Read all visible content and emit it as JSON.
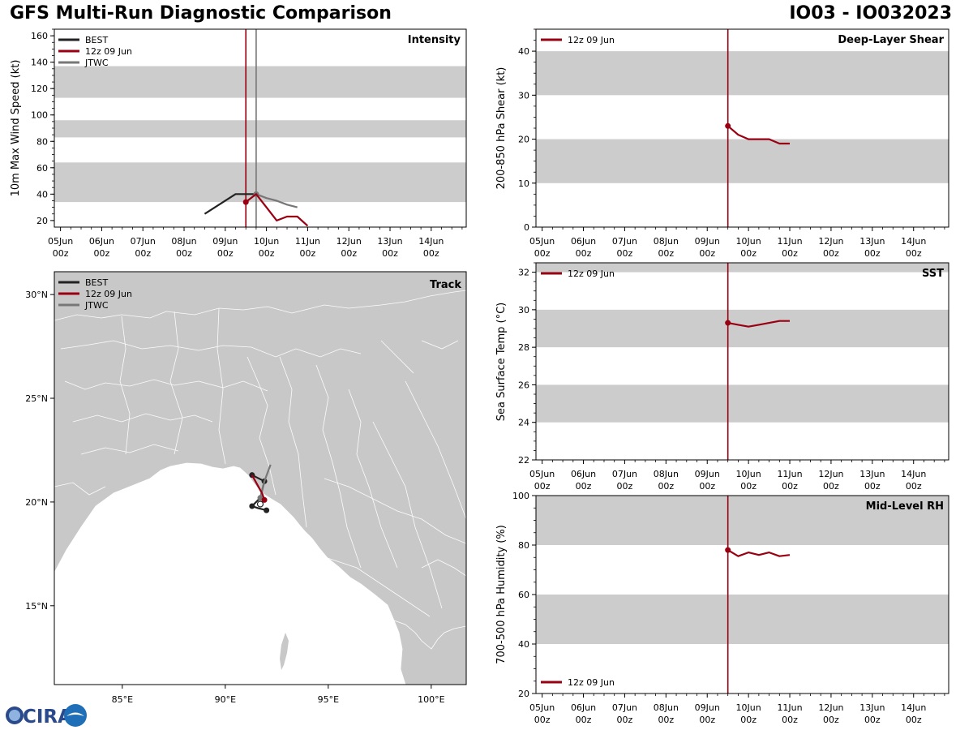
{
  "header": {
    "title": "GFS Multi-Run Diagnostic Comparison",
    "storm_id": "IO03 - IO032023"
  },
  "logo": {
    "text": "CIRA",
    "icon": "cira-logo-icon"
  },
  "colors": {
    "best": "#222222",
    "run": "#990011",
    "jtwc": "#777777",
    "band": "#cccccc",
    "land": "#c8c8c8",
    "border": "#ffffff"
  },
  "time_axis": {
    "ticks": [
      {
        "t": 0,
        "day": "05Jun",
        "hr": "00z"
      },
      {
        "t": 1,
        "day": "06Jun",
        "hr": "00z"
      },
      {
        "t": 2,
        "day": "07Jun",
        "hr": "00z"
      },
      {
        "t": 3,
        "day": "08Jun",
        "hr": "00z"
      },
      {
        "t": 4,
        "day": "09Jun",
        "hr": "00z"
      },
      {
        "t": 5,
        "day": "10Jun",
        "hr": "00z"
      },
      {
        "t": 6,
        "day": "11Jun",
        "hr": "00z"
      },
      {
        "t": 7,
        "day": "12Jun",
        "hr": "00z"
      },
      {
        "t": 8,
        "day": "13Jun",
        "hr": "00z"
      },
      {
        "t": 9,
        "day": "14Jun",
        "hr": "00z"
      }
    ],
    "range_days": [
      -0.15,
      9.85
    ],
    "note": "t = days since 05Jun 00z"
  },
  "chart_data": [
    {
      "id": "intensity",
      "type": "line",
      "title": "Intensity",
      "ylabel": "10m Max Wind Speed (kt)",
      "ylim": [
        15,
        165
      ],
      "yticks": [
        20,
        40,
        60,
        80,
        100,
        120,
        140,
        160
      ],
      "bands": [
        [
          34,
          64
        ],
        [
          83,
          96
        ],
        [
          113,
          137
        ]
      ],
      "vlines": [
        {
          "t": 4.5,
          "series": "run"
        },
        {
          "t": 4.75,
          "series": "jtwc"
        }
      ],
      "legend": [
        {
          "label": "BEST",
          "series": "best"
        },
        {
          "label": "12z 09 Jun",
          "series": "run"
        },
        {
          "label": "JTWC",
          "series": "jtwc"
        }
      ],
      "series": [
        {
          "name": "BEST",
          "key": "best",
          "x": [
            3.5,
            4.25,
            4.5,
            4.75
          ],
          "y": [
            25,
            40,
            40,
            40
          ],
          "markers": []
        },
        {
          "name": "JTWC",
          "key": "jtwc",
          "x": [
            4.75,
            5.0,
            5.25,
            5.5,
            5.75
          ],
          "y": [
            40,
            37,
            35,
            32,
            30
          ],
          "markers": [
            0
          ]
        },
        {
          "name": "12z 09 Jun",
          "key": "run",
          "x": [
            4.5,
            4.75,
            5.0,
            5.25,
            5.5,
            5.75,
            6.0
          ],
          "y": [
            34,
            40,
            30,
            20,
            23,
            23,
            16
          ],
          "markers": [
            0
          ]
        }
      ]
    },
    {
      "id": "shear",
      "type": "line",
      "title": "Deep-Layer Shear",
      "ylabel": "200-850 hPa Shear (kt)",
      "ylim": [
        0,
        45
      ],
      "yticks": [
        0,
        10,
        20,
        30,
        40
      ],
      "bands": [
        [
          10,
          20
        ],
        [
          30,
          40
        ]
      ],
      "vlines": [
        {
          "t": 4.5,
          "series": "run"
        }
      ],
      "legend": [
        {
          "label": "12z 09 Jun",
          "series": "run"
        }
      ],
      "series": [
        {
          "name": "12z 09 Jun",
          "key": "run",
          "x": [
            4.5,
            4.75,
            5.0,
            5.25,
            5.5,
            5.75,
            6.0
          ],
          "y": [
            23,
            21,
            20,
            20,
            20,
            19,
            19
          ],
          "markers": [
            0
          ]
        }
      ]
    },
    {
      "id": "sst",
      "type": "line",
      "title": "SST",
      "ylabel": "Sea Surface Temp (°C)",
      "ylim": [
        22,
        32.5
      ],
      "yticks": [
        22,
        24,
        26,
        28,
        30,
        32
      ],
      "bands": [
        [
          24,
          26
        ],
        [
          28,
          30
        ],
        [
          32,
          34
        ]
      ],
      "vlines": [
        {
          "t": 4.5,
          "series": "run"
        }
      ],
      "legend": [
        {
          "label": "12z 09 Jun",
          "series": "run"
        }
      ],
      "series": [
        {
          "name": "12z 09 Jun",
          "key": "run",
          "x": [
            4.5,
            4.75,
            5.0,
            5.25,
            5.5,
            5.75,
            6.0
          ],
          "y": [
            29.3,
            29.2,
            29.1,
            29.2,
            29.3,
            29.4,
            29.4
          ],
          "markers": [
            0
          ]
        }
      ]
    },
    {
      "id": "rh",
      "type": "line",
      "title": "Mid-Level RH",
      "ylabel": "700-500 hPa Humidity (%)",
      "ylim": [
        20,
        100
      ],
      "yticks": [
        20,
        40,
        60,
        80,
        100
      ],
      "bands": [
        [
          40,
          60
        ],
        [
          80,
          100
        ]
      ],
      "vlines": [
        {
          "t": 4.5,
          "series": "run"
        }
      ],
      "legend": [
        {
          "label": "12z 09 Jun",
          "series": "run"
        }
      ],
      "legend_position": "bottom-left",
      "series": [
        {
          "name": "12z 09 Jun",
          "key": "run",
          "x": [
            4.5,
            4.75,
            5.0,
            5.25,
            5.5,
            5.75,
            6.0
          ],
          "y": [
            78,
            75.5,
            77,
            76,
            77,
            75.5,
            76
          ],
          "markers": [
            0
          ]
        }
      ]
    },
    {
      "id": "track",
      "type": "map",
      "title": "Track",
      "xlim": [
        81.7,
        101.7
      ],
      "ylim": [
        11.2,
        31.1
      ],
      "xticks": [
        {
          "v": 85,
          "label": "85°E"
        },
        {
          "v": 90,
          "label": "90°E"
        },
        {
          "v": 95,
          "label": "95°E"
        },
        {
          "v": 100,
          "label": "100°E"
        }
      ],
      "yticks": [
        {
          "v": 15,
          "label": "15°N"
        },
        {
          "v": 20,
          "label": "20°N"
        },
        {
          "v": 25,
          "label": "25°N"
        },
        {
          "v": 30,
          "label": "30°N"
        }
      ],
      "legend": [
        {
          "label": "BEST",
          "series": "best"
        },
        {
          "label": "12z 09 Jun",
          "series": "run"
        },
        {
          "label": "JTWC",
          "series": "jtwc"
        }
      ],
      "series": [
        {
          "name": "BEST",
          "key": "best",
          "lon": [
            92.0,
            91.6,
            91.3,
            91.7,
            91.9,
            91.3
          ],
          "lat": [
            19.6,
            19.7,
            19.8,
            20.2,
            21.0,
            21.3
          ],
          "markers": [
            0,
            2,
            4,
            5
          ]
        },
        {
          "name": "JTWC",
          "key": "jtwc",
          "lon": [
            91.7,
            91.9,
            92.2
          ],
          "lat": [
            20.2,
            21.0,
            21.8
          ],
          "markers": [
            0
          ]
        },
        {
          "name": "12z 09 Jun",
          "key": "run",
          "lon": [
            91.3,
            91.8,
            91.9
          ],
          "lat": [
            21.3,
            20.4,
            20.1
          ],
          "markers": [
            2
          ]
        }
      ],
      "open_marker": {
        "lon": 91.7,
        "lat": 19.9
      }
    }
  ]
}
